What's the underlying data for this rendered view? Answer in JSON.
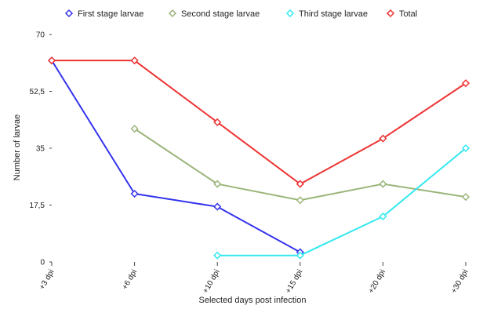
{
  "chart_data": {
    "type": "line",
    "categories": [
      "+3 dpi",
      "+6 dpi",
      "+10 dpi",
      "+15 dpi",
      "+20 dpi",
      "+30 dpi"
    ],
    "series": [
      {
        "name": "First stage larvae",
        "color": "#3333ee",
        "values": [
          62,
          21,
          17,
          3,
          null,
          null
        ]
      },
      {
        "name": "Second stage larvae",
        "color": "#9bb57a",
        "values": [
          null,
          41,
          24,
          19,
          24,
          20
        ]
      },
      {
        "name": "Third stage larvae",
        "color": "#33e8f0",
        "values": [
          null,
          null,
          2,
          2,
          14,
          35
        ]
      },
      {
        "name": "Total",
        "color": "#ee3333",
        "values": [
          62,
          62,
          43,
          24,
          38,
          55
        ]
      }
    ],
    "yticks": [
      "0",
      "17,5",
      "35",
      "52,5",
      "70"
    ],
    "ytick_values": [
      0,
      17.5,
      35,
      52.5,
      70
    ],
    "ylim": [
      0,
      70
    ],
    "xlabel": "Selected days post infection",
    "ylabel": "Number of larvae",
    "legend_position": "top",
    "grid": false
  }
}
